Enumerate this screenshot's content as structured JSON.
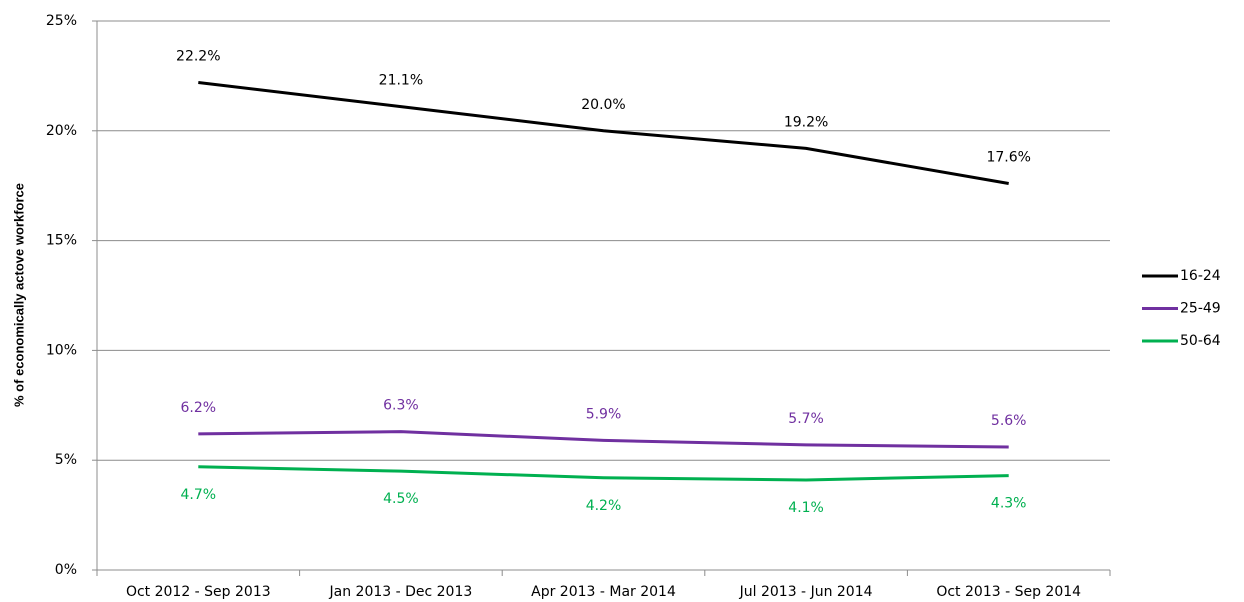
{
  "chart_data": {
    "type": "line",
    "y_label": "% of economically actove workforce",
    "categories": [
      "Oct 2012 - Sep 2013",
      "Jan 2013 - Dec 2013",
      "Apr 2013 - Mar 2014",
      "Jul 2013 - Jun 2014",
      "Oct 2013 - Sep 2014"
    ],
    "series": [
      {
        "name": "16-24",
        "color": "#000000",
        "values": [
          22.2,
          21.1,
          20.0,
          19.2,
          17.6
        ],
        "value_labels": [
          "22.2%",
          "21.1%",
          "20.0%",
          "19.2%",
          "17.6%"
        ]
      },
      {
        "name": "25-49",
        "color": "#7030a0",
        "values": [
          6.2,
          6.3,
          5.9,
          5.7,
          5.6
        ],
        "value_labels": [
          "6.2%",
          "6.3%",
          "5.9%",
          "5.7%",
          "5.6%"
        ]
      },
      {
        "name": "50-64",
        "color": "#00b050",
        "values": [
          4.7,
          4.5,
          4.2,
          4.1,
          4.3
        ],
        "value_labels": [
          "4.7%",
          "4.5%",
          "4.2%",
          "4.1%",
          "4.3%"
        ]
      }
    ],
    "ylim": [
      0,
      25
    ],
    "yticks": [
      {
        "value": 0,
        "label": "0%"
      },
      {
        "value": 5,
        "label": "5%"
      },
      {
        "value": 10,
        "label": "10%"
      },
      {
        "value": 15,
        "label": "15%"
      },
      {
        "value": 20,
        "label": "20%"
      },
      {
        "value": 25,
        "label": "25%"
      }
    ],
    "grid": true,
    "legend": "right"
  }
}
